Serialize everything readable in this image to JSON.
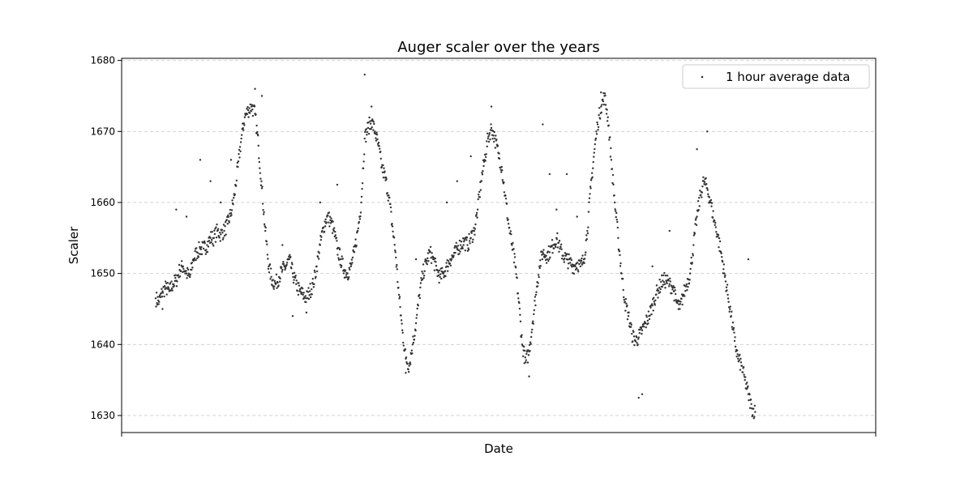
{
  "chart_data": {
    "type": "scatter",
    "title": "Auger scaler over the years",
    "xlabel": "Date",
    "ylabel": "Scaler",
    "ylim": [
      1627.6,
      1680.3
    ],
    "x_ticks_labeled": false,
    "yticks": [
      1630,
      1640,
      1650,
      1660,
      1670,
      1680
    ],
    "grid": "y-dashed",
    "legend_position": "top-right",
    "series": [
      {
        "name": "1 hour average data",
        "color": "#333333",
        "points": [
          [
            0.0,
            1646.5
          ],
          [
            0.005,
            1646.0
          ],
          [
            0.01,
            1647.5
          ],
          [
            0.015,
            1648.0
          ],
          [
            0.02,
            1647.5
          ],
          [
            0.025,
            1648.5
          ],
          [
            0.03,
            1649.0
          ],
          [
            0.035,
            1650.5
          ],
          [
            0.04,
            1651.0
          ],
          [
            0.045,
            1650.0
          ],
          [
            0.05,
            1649.5
          ],
          [
            0.055,
            1652.0
          ],
          [
            0.06,
            1653.0
          ],
          [
            0.065,
            1653.5
          ],
          [
            0.07,
            1653.5
          ],
          [
            0.075,
            1654.0
          ],
          [
            0.08,
            1655.0
          ],
          [
            0.085,
            1655.0
          ],
          [
            0.09,
            1656.0
          ],
          [
            0.095,
            1655.5
          ],
          [
            0.1,
            1656.0
          ],
          [
            0.105,
            1657.0
          ],
          [
            0.11,
            1658.5
          ],
          [
            0.115,
            1661.0
          ],
          [
            0.12,
            1665.0
          ],
          [
            0.125,
            1669.0
          ],
          [
            0.13,
            1672.0
          ],
          [
            0.135,
            1673.0
          ],
          [
            0.14,
            1673.5
          ],
          [
            0.145,
            1672.5
          ],
          [
            0.15,
            1668.0
          ],
          [
            0.155,
            1662.0
          ],
          [
            0.16,
            1656.0
          ],
          [
            0.165,
            1651.0
          ],
          [
            0.17,
            1649.0
          ],
          [
            0.175,
            1648.5
          ],
          [
            0.18,
            1649.5
          ],
          [
            0.185,
            1650.5
          ],
          [
            0.19,
            1651.0
          ],
          [
            0.195,
            1652.0
          ],
          [
            0.2,
            1650.0
          ],
          [
            0.205,
            1648.5
          ],
          [
            0.21,
            1647.5
          ],
          [
            0.215,
            1647.0
          ],
          [
            0.22,
            1646.5
          ],
          [
            0.225,
            1647.5
          ],
          [
            0.23,
            1648.5
          ],
          [
            0.235,
            1651.0
          ],
          [
            0.24,
            1654.0
          ],
          [
            0.245,
            1656.5
          ],
          [
            0.25,
            1658.0
          ],
          [
            0.255,
            1657.5
          ],
          [
            0.26,
            1656.0
          ],
          [
            0.265,
            1653.5
          ],
          [
            0.27,
            1652.0
          ],
          [
            0.275,
            1650.5
          ],
          [
            0.28,
            1650.0
          ],
          [
            0.285,
            1651.0
          ],
          [
            0.29,
            1653.0
          ],
          [
            0.295,
            1656.0
          ],
          [
            0.3,
            1660.0
          ],
          [
            0.305,
            1669.0
          ],
          [
            0.31,
            1670.5
          ],
          [
            0.315,
            1671.5
          ],
          [
            0.32,
            1670.0
          ],
          [
            0.325,
            1668.0
          ],
          [
            0.33,
            1665.0
          ],
          [
            0.335,
            1663.5
          ],
          [
            0.34,
            1661.0
          ],
          [
            0.345,
            1657.0
          ],
          [
            0.35,
            1653.0
          ],
          [
            0.355,
            1647.0
          ],
          [
            0.36,
            1642.0
          ],
          [
            0.365,
            1638.0
          ],
          [
            0.37,
            1637.0
          ],
          [
            0.375,
            1640.0
          ],
          [
            0.38,
            1643.0
          ],
          [
            0.385,
            1647.0
          ],
          [
            0.39,
            1650.0
          ],
          [
            0.395,
            1651.5
          ],
          [
            0.4,
            1653.0
          ],
          [
            0.405,
            1652.0
          ],
          [
            0.41,
            1650.5
          ],
          [
            0.415,
            1649.5
          ],
          [
            0.42,
            1650.0
          ],
          [
            0.425,
            1651.0
          ],
          [
            0.43,
            1652.0
          ],
          [
            0.435,
            1652.5
          ],
          [
            0.44,
            1653.5
          ],
          [
            0.445,
            1654.0
          ],
          [
            0.45,
            1654.5
          ],
          [
            0.455,
            1654.0
          ],
          [
            0.46,
            1655.0
          ],
          [
            0.465,
            1656.0
          ],
          [
            0.47,
            1659.0
          ],
          [
            0.475,
            1663.0
          ],
          [
            0.48,
            1666.0
          ],
          [
            0.485,
            1669.0
          ],
          [
            0.49,
            1670.5
          ],
          [
            0.495,
            1669.0
          ],
          [
            0.5,
            1667.0
          ],
          [
            0.505,
            1665.0
          ],
          [
            0.51,
            1661.0
          ],
          [
            0.515,
            1657.0
          ],
          [
            0.52,
            1654.0
          ],
          [
            0.525,
            1651.0
          ],
          [
            0.53,
            1646.0
          ],
          [
            0.535,
            1640.0
          ],
          [
            0.54,
            1637.5
          ],
          [
            0.545,
            1639.0
          ],
          [
            0.55,
            1643.0
          ],
          [
            0.555,
            1647.0
          ],
          [
            0.56,
            1651.0
          ],
          [
            0.565,
            1653.0
          ],
          [
            0.57,
            1652.5
          ],
          [
            0.575,
            1653.0
          ],
          [
            0.58,
            1654.0
          ],
          [
            0.585,
            1655.0
          ],
          [
            0.59,
            1653.5
          ],
          [
            0.595,
            1652.5
          ],
          [
            0.6,
            1652.0
          ],
          [
            0.605,
            1651.5
          ],
          [
            0.61,
            1651.0
          ],
          [
            0.615,
            1651.5
          ],
          [
            0.62,
            1651.0
          ],
          [
            0.625,
            1652.0
          ],
          [
            0.63,
            1656.0
          ],
          [
            0.635,
            1662.0
          ],
          [
            0.64,
            1667.0
          ],
          [
            0.645,
            1671.0
          ],
          [
            0.65,
            1673.5
          ],
          [
            0.655,
            1675.0
          ],
          [
            0.66,
            1672.0
          ],
          [
            0.665,
            1666.0
          ],
          [
            0.67,
            1660.0
          ],
          [
            0.675,
            1655.0
          ],
          [
            0.68,
            1650.0
          ],
          [
            0.685,
            1646.0
          ],
          [
            0.69,
            1644.0
          ],
          [
            0.695,
            1641.5
          ],
          [
            0.7,
            1640.5
          ],
          [
            0.705,
            1641.0
          ],
          [
            0.71,
            1642.0
          ],
          [
            0.715,
            1643.0
          ],
          [
            0.72,
            1644.0
          ],
          [
            0.725,
            1645.5
          ],
          [
            0.73,
            1647.0
          ],
          [
            0.735,
            1648.0
          ],
          [
            0.74,
            1649.0
          ],
          [
            0.745,
            1649.0
          ],
          [
            0.75,
            1648.5
          ],
          [
            0.755,
            1648.0
          ],
          [
            0.76,
            1646.0
          ],
          [
            0.765,
            1645.0
          ],
          [
            0.77,
            1647.0
          ],
          [
            0.775,
            1648.5
          ],
          [
            0.78,
            1650.0
          ],
          [
            0.785,
            1654.0
          ],
          [
            0.79,
            1658.0
          ],
          [
            0.795,
            1661.0
          ],
          [
            0.8,
            1663.0
          ],
          [
            0.805,
            1662.0
          ],
          [
            0.81,
            1660.0
          ],
          [
            0.815,
            1657.5
          ],
          [
            0.82,
            1655.5
          ],
          [
            0.825,
            1653.0
          ],
          [
            0.83,
            1650.0
          ],
          [
            0.835,
            1647.0
          ],
          [
            0.84,
            1644.0
          ],
          [
            0.845,
            1640.5
          ],
          [
            0.85,
            1638.0
          ],
          [
            0.855,
            1637.0
          ],
          [
            0.86,
            1635.0
          ],
          [
            0.865,
            1633.0
          ],
          [
            0.87,
            1631.0
          ],
          [
            0.875,
            1630.5
          ],
          [
            0.03,
            1659.0
          ],
          [
            0.045,
            1658.0
          ],
          [
            0.065,
            1666.0
          ],
          [
            0.08,
            1663.0
          ],
          [
            0.095,
            1660.0
          ],
          [
            0.11,
            1666.0
          ],
          [
            0.145,
            1676.0
          ],
          [
            0.155,
            1675.0
          ],
          [
            0.185,
            1654.0
          ],
          [
            0.2,
            1644.0
          ],
          [
            0.24,
            1660.0
          ],
          [
            0.265,
            1662.5
          ],
          [
            0.305,
            1678.0
          ],
          [
            0.315,
            1673.5
          ],
          [
            0.365,
            1636.0
          ],
          [
            0.425,
            1660.0
          ],
          [
            0.44,
            1663.0
          ],
          [
            0.46,
            1666.5
          ],
          [
            0.49,
            1673.5
          ],
          [
            0.545,
            1635.5
          ],
          [
            0.565,
            1671.0
          ],
          [
            0.575,
            1664.0
          ],
          [
            0.585,
            1659.0
          ],
          [
            0.6,
            1664.0
          ],
          [
            0.615,
            1658.0
          ],
          [
            0.65,
            1675.5
          ],
          [
            0.71,
            1633.0
          ],
          [
            0.725,
            1651.0
          ],
          [
            0.75,
            1656.0
          ],
          [
            0.79,
            1667.5
          ],
          [
            0.805,
            1670.0
          ],
          [
            0.865,
            1652.0
          ],
          [
            0.705,
            1632.5
          ],
          [
            0.38,
            1652.0
          ],
          [
            0.22,
            1644.5
          ],
          [
            0.01,
            1645.0
          ]
        ]
      }
    ]
  }
}
